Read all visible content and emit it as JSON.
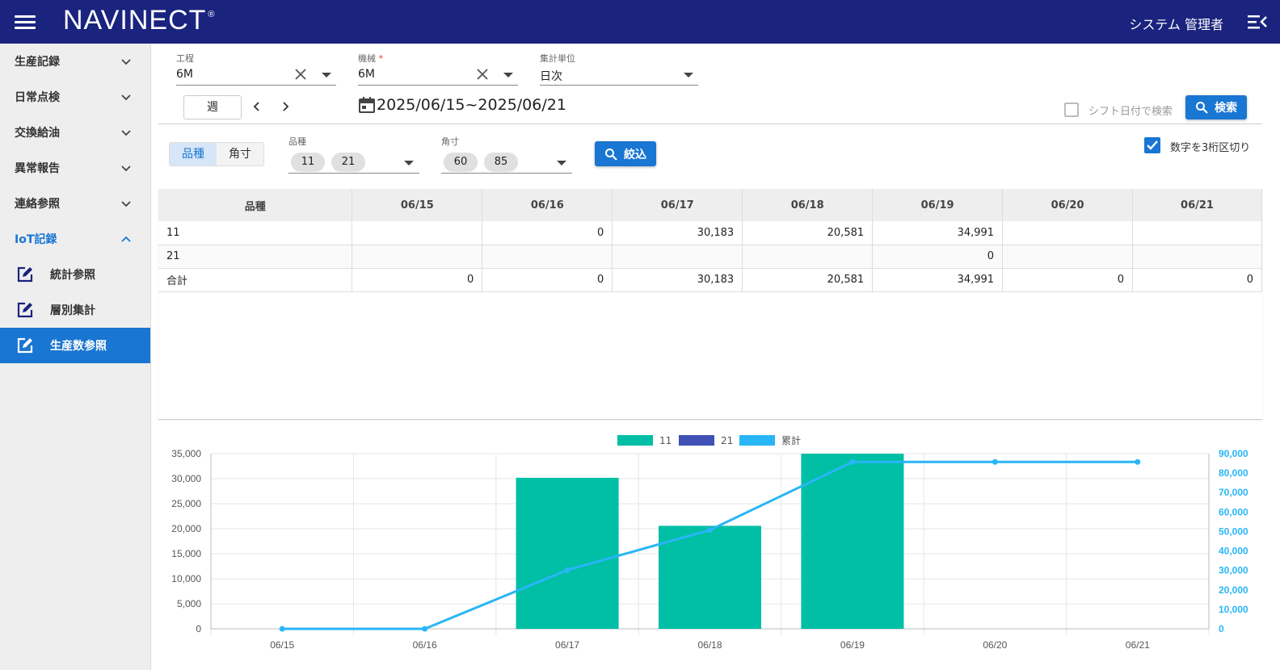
{
  "header": {
    "logo": "NAVINECT",
    "logo_mark": "®",
    "user": "システム 管理者"
  },
  "sidebar": {
    "items": [
      {
        "label": "生産記録",
        "open": false
      },
      {
        "label": "日常点検",
        "open": false
      },
      {
        "label": "交換給油",
        "open": false
      },
      {
        "label": "異常報告",
        "open": false
      },
      {
        "label": "連絡参照",
        "open": false
      },
      {
        "label": "IoT記録",
        "open": true
      }
    ],
    "subitems": [
      {
        "label": "統計参照",
        "active": false
      },
      {
        "label": "層別集計",
        "active": false
      },
      {
        "label": "生産数参照",
        "active": true
      }
    ]
  },
  "filters": {
    "process": {
      "label": "工程",
      "value": "6M"
    },
    "machine": {
      "label": "機械",
      "required_mark": "*",
      "value": "6M"
    },
    "unit": {
      "label": "集計単位",
      "value": "日次"
    },
    "period_button": "週",
    "date_range": "2025/06/15~2025/06/21",
    "shift_label": "シフト日付で検索",
    "shift_checked": false,
    "search_button": "検索"
  },
  "refine": {
    "toggle": [
      "品種",
      "角寸"
    ],
    "toggle_selected": 0,
    "kind": {
      "label": "品種",
      "chips": [
        "11",
        "21"
      ]
    },
    "size": {
      "label": "角寸",
      "chips": [
        "60",
        "85"
      ]
    },
    "narrow_button": "絞込",
    "digits_label": "数字を3桁区切り",
    "digits_checked": true
  },
  "table": {
    "headers": [
      "品種",
      "06/15",
      "06/16",
      "06/17",
      "06/18",
      "06/19",
      "06/20",
      "06/21"
    ],
    "rows": [
      [
        "11",
        "",
        "0",
        "30,183",
        "20,581",
        "34,991",
        "",
        ""
      ],
      [
        "21",
        "",
        "",
        "",
        "",
        "0",
        "",
        ""
      ],
      [
        "合計",
        "0",
        "0",
        "30,183",
        "20,581",
        "34,991",
        "0",
        "0"
      ]
    ]
  },
  "colors": {
    "appbar": "#1a237e",
    "accent": "#1976d2",
    "series_11": "#00bfa5",
    "series_21": "#3f51b5",
    "cumulative": "#29b6f6"
  },
  "chart_data": {
    "type": "bar",
    "categories": [
      "06/15",
      "06/16",
      "06/17",
      "06/18",
      "06/19",
      "06/20",
      "06/21"
    ],
    "series": [
      {
        "name": "11",
        "type": "bar",
        "axis": "left",
        "values": [
          0,
          0,
          30183,
          20581,
          34991,
          0,
          0
        ]
      },
      {
        "name": "21",
        "type": "bar",
        "axis": "left",
        "values": [
          0,
          0,
          0,
          0,
          0,
          0,
          0
        ]
      },
      {
        "name": "累計",
        "type": "line",
        "axis": "right",
        "values": [
          0,
          0,
          30183,
          50764,
          85755,
          85755,
          85755
        ]
      }
    ],
    "ylim_left": [
      0,
      35000
    ],
    "yticks_left": [
      "0",
      "5,000",
      "10,000",
      "15,000",
      "20,000",
      "25,000",
      "30,000",
      "35,000"
    ],
    "ylim_right": [
      0,
      90000
    ],
    "yticks_right": [
      "0",
      "10,000",
      "20,000",
      "30,000",
      "40,000",
      "50,000",
      "60,000",
      "70,000",
      "80,000",
      "90,000"
    ],
    "legend_position": "top",
    "grid": true
  }
}
